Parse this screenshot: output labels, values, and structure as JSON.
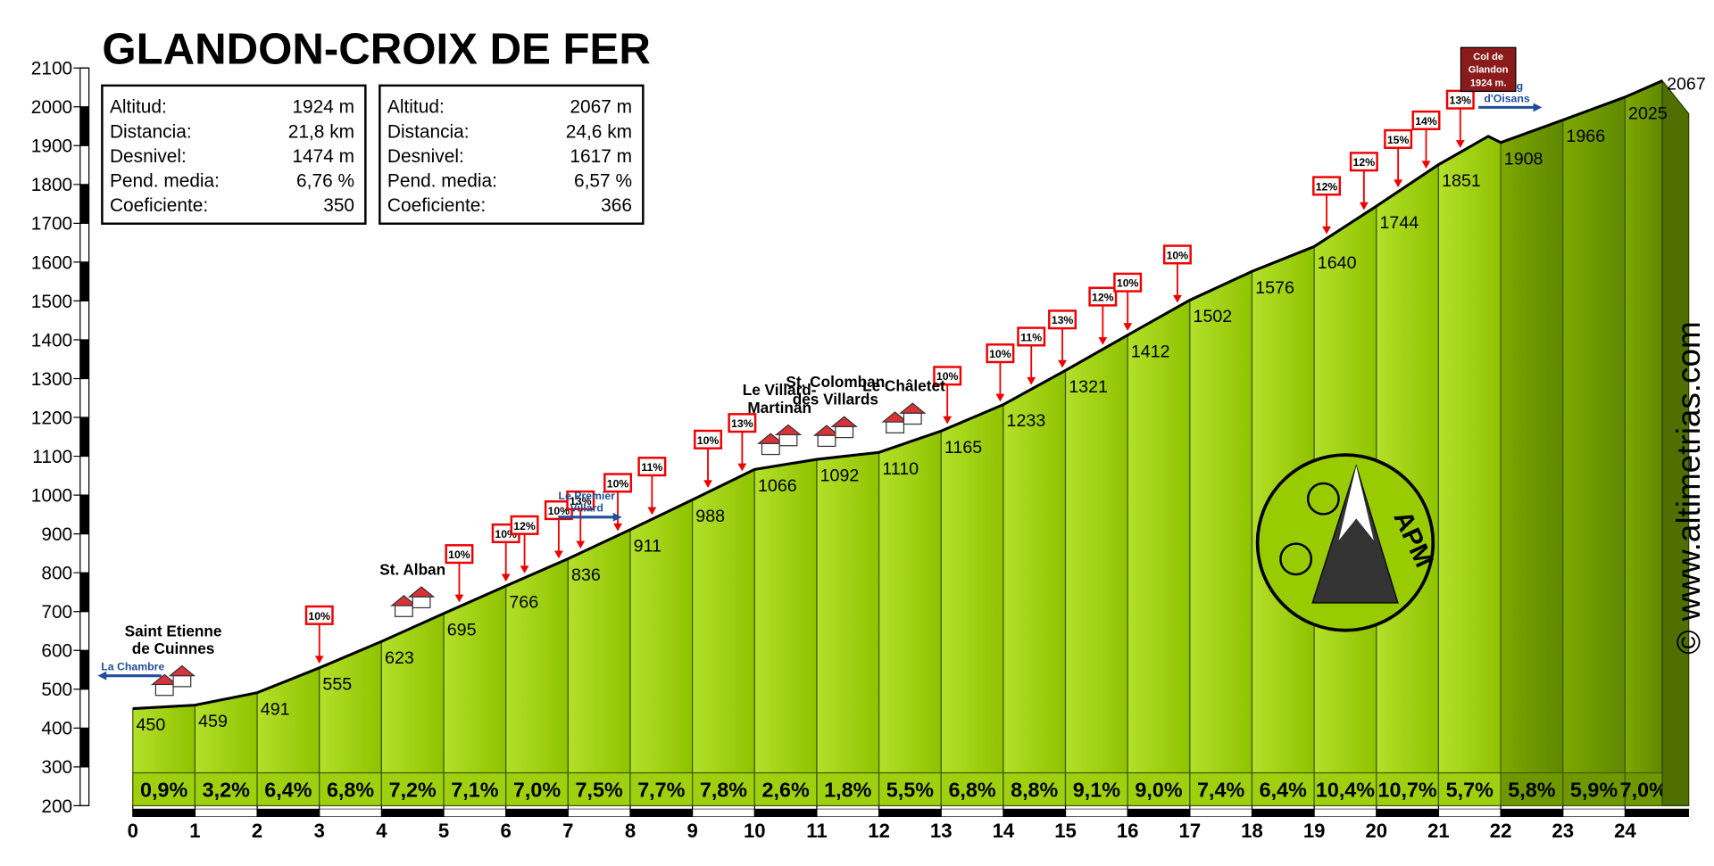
{
  "chart_data": {
    "type": "area",
    "title": "GLANDON-CROIX DE FER",
    "credit": "© www.altimetrias.com",
    "logo": "APM",
    "xlim": [
      0,
      24.6
    ],
    "xticks": [
      0,
      1,
      2,
      3,
      4,
      5,
      6,
      7,
      8,
      9,
      10,
      11,
      12,
      13,
      14,
      15,
      16,
      17,
      18,
      19,
      20,
      21,
      22,
      23,
      24
    ],
    "ylim": [
      200,
      2100
    ],
    "yticks": [
      200,
      300,
      400,
      500,
      600,
      700,
      800,
      900,
      1000,
      1100,
      1200,
      1300,
      1400,
      1500,
      1600,
      1700,
      1800,
      1900,
      2000,
      2100
    ],
    "x": [
      0,
      1,
      2,
      3,
      4,
      5,
      6,
      7,
      8,
      9,
      10,
      11,
      12,
      13,
      14,
      15,
      16,
      17,
      18,
      19,
      20,
      21,
      21.8,
      22,
      23,
      24,
      24.6
    ],
    "series": [
      {
        "name": "Altitud",
        "color": "#99cc00",
        "values": [
          450,
          459,
          491,
          555,
          623,
          695,
          766,
          836,
          911,
          988,
          1066,
          1092,
          1110,
          1165,
          1233,
          1321,
          1412,
          1502,
          1576,
          1640,
          1744,
          1851,
          1924,
          1908,
          1966,
          2025,
          2067
        ],
        "value_labels": [
          "450",
          "459",
          "491",
          "555",
          "623",
          "695",
          "766",
          "836",
          "911",
          "988",
          "1066",
          "1092",
          "1110",
          "1165",
          "1233",
          "1321",
          "1412",
          "1502",
          "1576",
          "1640",
          "1744",
          "1851",
          null,
          "1908",
          "1966",
          "2025",
          "2067"
        ]
      }
    ],
    "gradient": {
      "values": [
        0.9,
        3.2,
        6.4,
        6.8,
        7.2,
        7.1,
        7.0,
        7.5,
        7.7,
        7.8,
        2.6,
        1.8,
        5.5,
        6.8,
        8.8,
        9.1,
        9.0,
        7.4,
        6.4,
        10.4,
        10.7,
        5.7,
        5.8,
        5.9,
        7.0
      ],
      "value_labels": [
        "0,9%",
        "3,2%",
        "6,4%",
        "6,8%",
        "7,2%",
        "7,1%",
        "7,0%",
        "7,5%",
        "7,7%",
        "7,8%",
        "2,6%",
        "1,8%",
        "5,5%",
        "6,8%",
        "8,8%",
        "9,1%",
        "9,0%",
        "7,4%",
        "6,4%",
        "10,4%",
        "10,7%",
        "5,7%",
        "5,8%",
        "5,9%",
        "7,0%"
      ]
    },
    "markers": [
      {
        "x": 3.0,
        "label": "10%"
      },
      {
        "x": 5.25,
        "label": "10%"
      },
      {
        "x": 6.0,
        "label": "10%"
      },
      {
        "x": 6.3,
        "label": "12%"
      },
      {
        "x": 6.85,
        "label": "10%"
      },
      {
        "x": 7.2,
        "label": "13%"
      },
      {
        "x": 7.8,
        "label": "10%"
      },
      {
        "x": 8.35,
        "label": "11%"
      },
      {
        "x": 9.25,
        "label": "10%"
      },
      {
        "x": 9.8,
        "label": "13%"
      },
      {
        "x": 13.1,
        "label": "10%"
      },
      {
        "x": 13.95,
        "label": "10%"
      },
      {
        "x": 14.45,
        "label": "11%"
      },
      {
        "x": 14.95,
        "label": "13%"
      },
      {
        "x": 15.6,
        "label": "12%"
      },
      {
        "x": 16.0,
        "label": "10%"
      },
      {
        "x": 16.8,
        "label": "10%"
      },
      {
        "x": 19.2,
        "label": "12%"
      },
      {
        "x": 19.8,
        "label": "12%"
      },
      {
        "x": 20.35,
        "label": "15%"
      },
      {
        "x": 20.8,
        "label": "14%"
      },
      {
        "x": 21.35,
        "label": "13%"
      }
    ],
    "villages": [
      {
        "x": 0.65,
        "label": [
          "Saint Etienne",
          "de Cuinnes"
        ]
      },
      {
        "x": 4.5,
        "label": [
          "St. Alban"
        ]
      },
      {
        "x": 10.4,
        "label": [
          "Le Villard-",
          "Martinan"
        ]
      },
      {
        "x": 11.3,
        "label": [
          "St. Colomban",
          "des Villards"
        ]
      },
      {
        "x": 12.4,
        "label": [
          "Le Châletet"
        ]
      }
    ],
    "signs": [
      {
        "x": 0,
        "label": [
          "La Chambre"
        ],
        "arrow": "left"
      },
      {
        "x": 7.3,
        "label": [
          "Le Premier",
          "Villard"
        ],
        "arrow": "right"
      },
      {
        "x": 22.1,
        "label": [
          "Bourg",
          "d'Oisans"
        ],
        "arrow": "right"
      }
    ],
    "col": {
      "x": 21.8,
      "label": [
        "Col de",
        "Glandon",
        "1924 m."
      ]
    },
    "stats": [
      {
        "rows": [
          [
            "Altitud:",
            "1924 m"
          ],
          [
            "Distancia:",
            "21,8 km"
          ],
          [
            "Desnivel:",
            "1474 m"
          ],
          [
            "Pend. media:",
            "6,76 %"
          ],
          [
            "Coeficiente:",
            "350"
          ]
        ]
      },
      {
        "rows": [
          [
            "Altitud:",
            "2067 m"
          ],
          [
            "Distancia:",
            "24,6 km"
          ],
          [
            "Desnivel:",
            "1617 m"
          ],
          [
            "Pend. media:",
            "6,57 %"
          ],
          [
            "Coeficiente:",
            "366"
          ]
        ]
      }
    ]
  }
}
